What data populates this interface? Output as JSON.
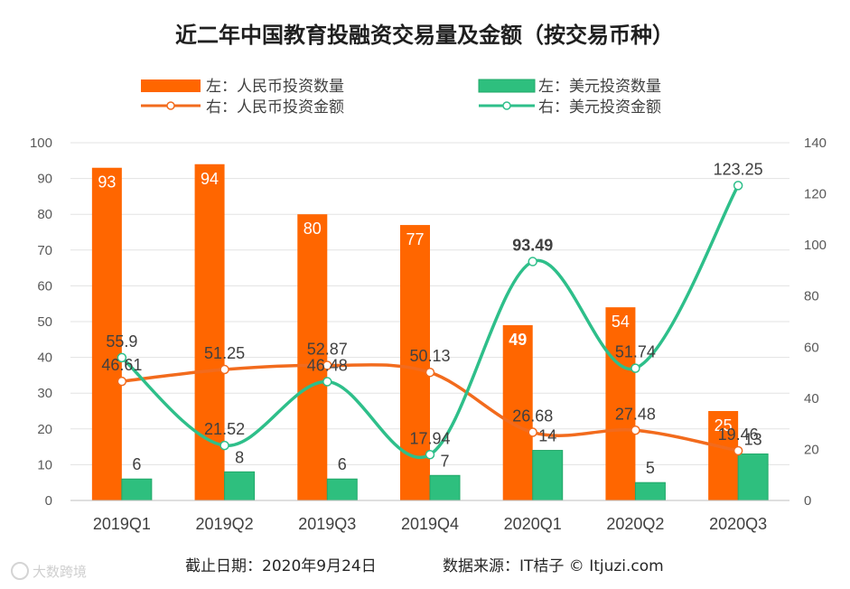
{
  "chart_data": {
    "type": "bar",
    "title": "近二年中国教育投融资交易量及金额（按交易币种）",
    "categories": [
      "2019Q1",
      "2019Q2",
      "2019Q3",
      "2019Q4",
      "2020Q1",
      "2020Q2",
      "2020Q3"
    ],
    "left_axis": {
      "ylim": [
        0,
        100
      ],
      "ticks": [
        0,
        10,
        20,
        30,
        40,
        50,
        60,
        70,
        80,
        90,
        100
      ]
    },
    "right_axis": {
      "ylim": [
        0,
        140
      ],
      "ticks": [
        0,
        20,
        40,
        60,
        80,
        100,
        120,
        140
      ]
    },
    "series": [
      {
        "name": "左：人民币投资数量",
        "type": "bar",
        "axis": "left",
        "color": "#FF6600",
        "values": [
          93,
          94,
          80,
          77,
          49,
          54,
          25
        ],
        "labels": [
          "93",
          "94",
          "80",
          "77",
          "49",
          "54",
          "25"
        ]
      },
      {
        "name": "左：美元投资数量",
        "type": "bar",
        "axis": "left",
        "color": "#2EBF7E",
        "values": [
          6,
          8,
          6,
          7,
          14,
          5,
          13
        ],
        "labels": [
          "6",
          "8",
          "6",
          "7",
          "14",
          "5",
          "13"
        ]
      },
      {
        "name": "右：人民币投资金额",
        "type": "line",
        "axis": "right",
        "color": "#F26B1D",
        "values": [
          46.61,
          51.25,
          52.87,
          50.13,
          26.68,
          27.48,
          19.46
        ],
        "labels": [
          "46.61",
          "51.25",
          "52.87",
          "50.13",
          "26.68",
          "27.48",
          "19.46"
        ]
      },
      {
        "name": "右：美元投资金额",
        "type": "line",
        "axis": "right",
        "color": "#2EBF8A",
        "values": [
          55.9,
          21.52,
          46.48,
          17.94,
          93.49,
          51.74,
          123.25
        ],
        "labels": [
          "55.9",
          "21.52",
          "46.48",
          "17.94",
          "93.49",
          "51.74",
          "123.25"
        ]
      }
    ],
    "grid": true,
    "legend_position": "top"
  },
  "footer": {
    "date_text": "截止日期：2020年9月24日",
    "source_text": "数据来源：IT桔子 © Itjuzi.com"
  },
  "watermark": {
    "text": "大数跨境"
  }
}
